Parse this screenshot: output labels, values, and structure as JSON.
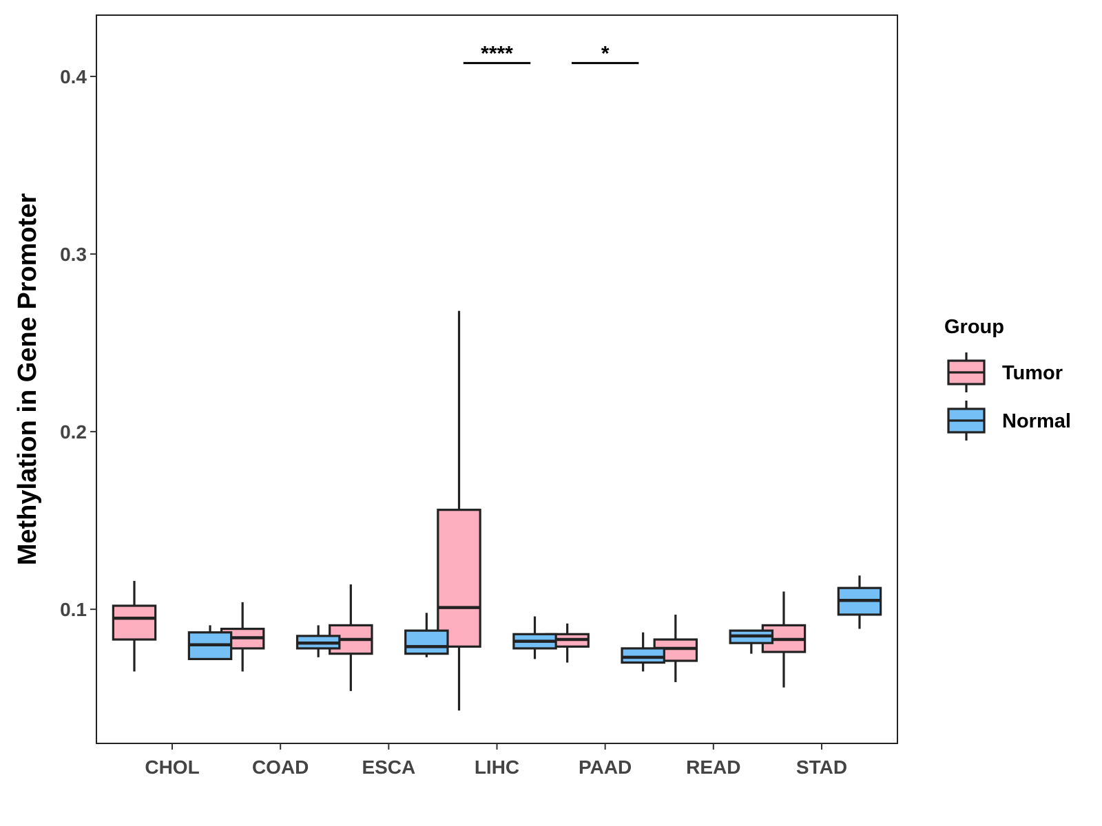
{
  "chart_data": {
    "type": "boxplot",
    "title": "",
    "xlabel": "",
    "ylabel": "Methylation in Gene Promoter",
    "ylim": [
      0.0245,
      0.4345
    ],
    "yticks": [
      0.1,
      0.2,
      0.3,
      0.4
    ],
    "ytick_labels": [
      "0.1",
      "0.2",
      "0.3",
      "0.4"
    ],
    "categories": [
      "CHOL",
      "COAD",
      "ESCA",
      "LIHC",
      "PAAD",
      "READ",
      "STAD"
    ],
    "legend_title": "Group",
    "legend_position": "right",
    "grid": false,
    "series": [
      {
        "name": "Tumor",
        "color": "#FDAFC0",
        "boxes": [
          {
            "category": "CHOL",
            "whisker_low": 0.065,
            "q1": 0.083,
            "median": 0.095,
            "q3": 0.102,
            "whisker_high": 0.116
          },
          {
            "category": "COAD",
            "whisker_low": 0.065,
            "q1": 0.078,
            "median": 0.084,
            "q3": 0.089,
            "whisker_high": 0.104
          },
          {
            "category": "ESCA",
            "whisker_low": 0.054,
            "q1": 0.075,
            "median": 0.083,
            "q3": 0.091,
            "whisker_high": 0.114
          },
          {
            "category": "LIHC",
            "whisker_low": 0.043,
            "q1": 0.079,
            "median": 0.101,
            "q3": 0.156,
            "whisker_high": 0.268
          },
          {
            "category": "PAAD",
            "whisker_low": 0.07,
            "q1": 0.079,
            "median": 0.083,
            "q3": 0.086,
            "whisker_high": 0.092
          },
          {
            "category": "READ",
            "whisker_low": 0.059,
            "q1": 0.071,
            "median": 0.078,
            "q3": 0.083,
            "whisker_high": 0.097
          },
          {
            "category": "STAD",
            "whisker_low": 0.056,
            "q1": 0.076,
            "median": 0.083,
            "q3": 0.091,
            "whisker_high": 0.11
          }
        ]
      },
      {
        "name": "Normal",
        "color": "#74BFF6",
        "boxes": [
          {
            "category": "CHOL",
            "whisker_low": 0.072,
            "q1": 0.072,
            "median": 0.08,
            "q3": 0.087,
            "whisker_high": 0.091
          },
          {
            "category": "COAD",
            "whisker_low": 0.073,
            "q1": 0.078,
            "median": 0.081,
            "q3": 0.085,
            "whisker_high": 0.091
          },
          {
            "category": "ESCA",
            "whisker_low": 0.073,
            "q1": 0.075,
            "median": 0.079,
            "q3": 0.088,
            "whisker_high": 0.098
          },
          {
            "category": "LIHC",
            "whisker_low": 0.072,
            "q1": 0.078,
            "median": 0.082,
            "q3": 0.086,
            "whisker_high": 0.096
          },
          {
            "category": "PAAD",
            "whisker_low": 0.065,
            "q1": 0.07,
            "median": 0.073,
            "q3": 0.078,
            "whisker_high": 0.087
          },
          {
            "category": "READ",
            "whisker_low": 0.075,
            "q1": 0.081,
            "median": 0.085,
            "q3": 0.088,
            "whisker_high": 0.088
          },
          {
            "category": "STAD",
            "whisker_low": 0.089,
            "q1": 0.097,
            "median": 0.105,
            "q3": 0.112,
            "whisker_high": 0.119
          }
        ]
      }
    ],
    "annotations": [
      {
        "category": "LIHC",
        "label": "****",
        "y": 0.4075
      },
      {
        "category": "PAAD",
        "label": "*",
        "y": 0.4075
      }
    ]
  }
}
